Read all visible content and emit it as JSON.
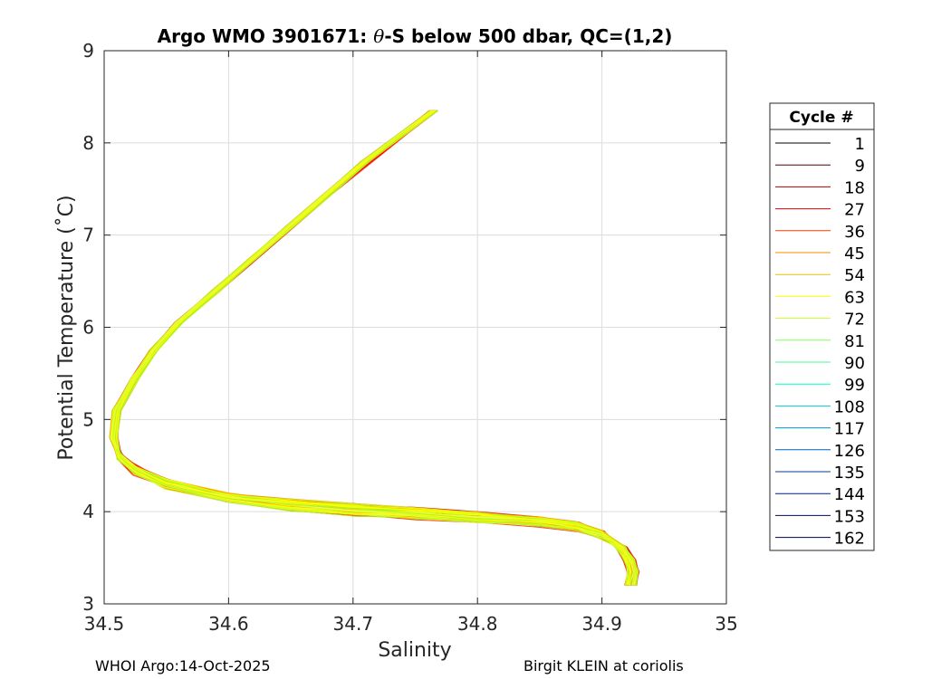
{
  "chart_data": {
    "type": "line",
    "title_prefix": "Argo WMO 3901671: ",
    "title_symbol": "θ",
    "title_suffix": "-S below 500 dbar,  QC=(1,2)",
    "xlabel": "Salinity",
    "ylabel": "Potential Temperature (˚C)",
    "xlim": [
      34.5,
      35
    ],
    "ylim": [
      3,
      9
    ],
    "xticks": [
      "34.5",
      "34.6",
      "34.7",
      "34.8",
      "34.9",
      "35"
    ],
    "yticks": [
      "3",
      "4",
      "5",
      "6",
      "7",
      "8",
      "9"
    ],
    "grid": true,
    "legend_title": "Cycle #",
    "legend_position": "right",
    "cycles": [
      "1",
      "9",
      "18",
      "27",
      "36",
      "45",
      "54",
      "63",
      "72",
      "81",
      "90",
      "99",
      "108",
      "117",
      "126",
      "135",
      "144",
      "153",
      "162"
    ],
    "cycle_colors": [
      "#000000",
      "#5a0000",
      "#b00000",
      "#e00000",
      "#ff3a00",
      "#ff8a00",
      "#e8c000",
      "#ffff00",
      "#c8ff20",
      "#80ff50",
      "#40ff90",
      "#00ffc0",
      "#00c8e8",
      "#0090d8",
      "#0060b8",
      "#003c98",
      "#002080",
      "#000a60",
      "#000050"
    ],
    "series_mean_shape": {
      "x": [
        34.765,
        34.74,
        34.71,
        34.68,
        34.65,
        34.62,
        34.59,
        34.56,
        34.54,
        34.525,
        34.51,
        34.508,
        34.512,
        34.525,
        34.55,
        34.6,
        34.65,
        34.7,
        34.75,
        34.8,
        34.85,
        34.88,
        34.9,
        34.915,
        34.922,
        34.925,
        34.923
      ],
      "y": [
        8.35,
        8.1,
        7.8,
        7.45,
        7.1,
        6.75,
        6.4,
        6.05,
        5.75,
        5.45,
        5.1,
        4.8,
        4.6,
        4.45,
        4.3,
        4.15,
        4.07,
        4.02,
        3.98,
        3.94,
        3.89,
        3.84,
        3.75,
        3.62,
        3.48,
        3.35,
        3.2
      ]
    }
  },
  "footer": {
    "left": "WHOI Argo:14-Oct-2025",
    "right": "Birgit KLEIN at coriolis"
  }
}
